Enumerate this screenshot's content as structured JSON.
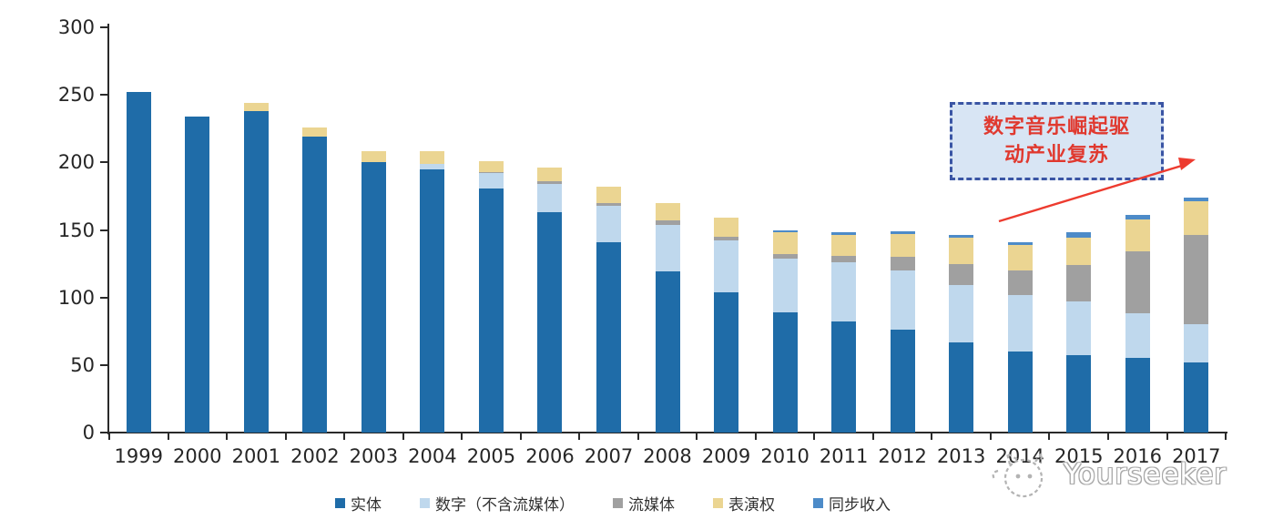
{
  "chart_data": {
    "type": "bar",
    "stacked": true,
    "title": "",
    "xlabel": "",
    "ylabel": "",
    "categories": [
      "1999",
      "2000",
      "2001",
      "2002",
      "2003",
      "2004",
      "2005",
      "2006",
      "2007",
      "2008",
      "2009",
      "2010",
      "2011",
      "2012",
      "2013",
      "2014",
      "2015",
      "2016",
      "2017"
    ],
    "series": [
      {
        "name": "实体",
        "color": "#1F6CA8",
        "values": [
          252,
          234,
          238,
          219,
          200,
          195,
          181,
          163,
          141,
          119,
          104,
          89,
          82,
          76,
          67,
          60,
          57,
          55,
          52
        ]
      },
      {
        "name": "数字（不含流媒体）",
        "color": "#BFD8ED",
        "values": [
          0,
          0,
          0,
          0,
          0,
          4,
          11,
          21,
          27,
          35,
          38,
          40,
          44,
          44,
          42,
          42,
          40,
          33,
          28
        ]
      },
      {
        "name": "流媒体",
        "color": "#A0A0A0",
        "values": [
          0,
          0,
          0,
          0,
          0,
          0,
          1,
          2,
          2,
          3,
          3,
          3,
          5,
          10,
          16,
          18,
          27,
          46,
          66
        ]
      },
      {
        "name": "表演权",
        "color": "#EBD592",
        "values": [
          0,
          0,
          6,
          7,
          8,
          9,
          8,
          10,
          12,
          13,
          14,
          16,
          15,
          17,
          19,
          19,
          20,
          24,
          25
        ]
      },
      {
        "name": "同步收入",
        "color": "#4D8BC8",
        "values": [
          0,
          0,
          0,
          0,
          0,
          0,
          0,
          0,
          0,
          0,
          0,
          2,
          2,
          2,
          2,
          2,
          4,
          3,
          3
        ]
      }
    ],
    "ylim": [
      0,
      300
    ],
    "yticks": [
      0,
      50,
      100,
      150,
      200,
      250,
      300
    ],
    "grid": false,
    "legend_position": "bottom",
    "axis_color": "#2a2a2a"
  },
  "annotation": {
    "line1": "数字音乐崛起驱",
    "line2": "动产业复苏",
    "text_color": "#E0392F",
    "box_fill": "#D8E5F4",
    "box_border_color": "#3A55A4",
    "arrow_color": "#ED3B2F"
  },
  "watermark": {
    "text": "Yourseeker"
  }
}
